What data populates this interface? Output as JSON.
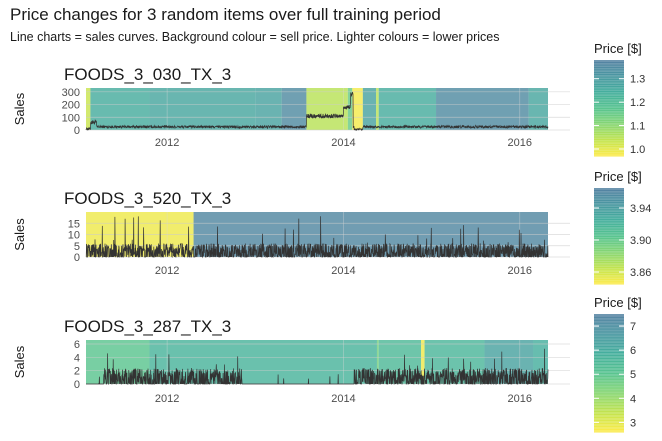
{
  "title": "Price changes for 3 random items over full training period",
  "subtitle": "Line charts = sales curves. Background colour = sell price. Lighter colours = lower prices",
  "chart_data": [
    {
      "type": "line",
      "title": "FOODS_3_030_TX_3",
      "ylabel": "Sales",
      "xlim": [
        2011.08,
        2016.32
      ],
      "ylim": [
        0,
        330
      ],
      "yticks": [
        0,
        100,
        200,
        300
      ],
      "xticks": [
        2012,
        2014,
        2016
      ],
      "legend": {
        "title": "Price [$]",
        "min": 0.97,
        "max": 1.38,
        "ticks": [
          1.0,
          1.1,
          1.2,
          1.3
        ],
        "placement": "right"
      },
      "price_segments": [
        {
          "start": 2011.08,
          "end": 2011.13,
          "price": 1.03
        },
        {
          "start": 2011.13,
          "end": 2011.8,
          "price": 1.25
        },
        {
          "start": 2011.8,
          "end": 2013.0,
          "price": 1.27
        },
        {
          "start": 2013.0,
          "end": 2013.3,
          "price": 1.28
        },
        {
          "start": 2013.3,
          "end": 2013.58,
          "price": 1.35
        },
        {
          "start": 2013.58,
          "end": 2014.05,
          "price": 1.05
        },
        {
          "start": 2014.05,
          "end": 2014.1,
          "price": 1.15
        },
        {
          "start": 2014.1,
          "end": 2014.22,
          "price": 0.98
        },
        {
          "start": 2014.22,
          "end": 2014.37,
          "price": 1.28
        },
        {
          "start": 2014.37,
          "end": 2014.4,
          "price": 1.05
        },
        {
          "start": 2014.4,
          "end": 2015.05,
          "price": 1.25
        },
        {
          "start": 2015.05,
          "end": 2016.1,
          "price": 1.35
        },
        {
          "start": 2016.1,
          "end": 2016.32,
          "price": 1.27
        }
      ],
      "sales": {
        "base": 25,
        "noise": 10,
        "profile": [
          {
            "start": 2011.08,
            "end": 2011.13,
            "level": 10
          },
          {
            "start": 2011.13,
            "end": 2011.2,
            "level": 60
          },
          {
            "start": 2013.58,
            "end": 2014.1,
            "level": 110
          },
          {
            "start": 2014.0,
            "end": 2014.1,
            "level": 180
          },
          {
            "start": 2014.08,
            "end": 2014.11,
            "level": 280
          },
          {
            "start": 2014.12,
            "end": 2014.22,
            "level": 3
          }
        ]
      }
    },
    {
      "type": "line",
      "title": "FOODS_3_520_TX_3",
      "ylabel": "Sales",
      "xlim": [
        2011.08,
        2016.32
      ],
      "ylim": [
        0,
        20
      ],
      "yticks": [
        0,
        5,
        10,
        15
      ],
      "xticks": [
        2012,
        2014,
        2016
      ],
      "legend": {
        "title": "Price [$]",
        "min": 3.845,
        "max": 3.965,
        "ticks": [
          3.86,
          3.9,
          3.94
        ],
        "placement": "right"
      },
      "price_segments": [
        {
          "start": 2011.08,
          "end": 2012.3,
          "price": 3.85
        },
        {
          "start": 2012.3,
          "end": 2016.32,
          "price": 3.96
        }
      ],
      "sales": {
        "base": 2.5,
        "noise": 3.5,
        "peak": 18.5,
        "profile": []
      }
    },
    {
      "type": "line",
      "title": "FOODS_3_287_TX_3",
      "ylabel": "Sales",
      "xlim": [
        2011.08,
        2016.32
      ],
      "ylim": [
        0,
        6.6
      ],
      "yticks": [
        0,
        2,
        4,
        6
      ],
      "xticks": [
        2012,
        2014,
        2016
      ],
      "legend": {
        "title": "Price [$]",
        "min": 2.6,
        "max": 7.5,
        "ticks": [
          3,
          4,
          5,
          6,
          7
        ],
        "placement": "right"
      },
      "price_segments": [
        {
          "start": 2011.08,
          "end": 2011.8,
          "price": 5.0
        },
        {
          "start": 2011.8,
          "end": 2014.38,
          "price": 5.7
        },
        {
          "start": 2014.38,
          "end": 2014.4,
          "price": 4.5
        },
        {
          "start": 2014.4,
          "end": 2014.88,
          "price": 5.5
        },
        {
          "start": 2014.88,
          "end": 2014.92,
          "price": 2.8
        },
        {
          "start": 2014.92,
          "end": 2015.6,
          "price": 5.6
        },
        {
          "start": 2015.6,
          "end": 2016.15,
          "price": 6.3
        },
        {
          "start": 2016.15,
          "end": 2016.32,
          "price": 5.9
        }
      ],
      "sales": {
        "base": 0.8,
        "noise": 1.6,
        "peak": 5.5,
        "profile": [
          {
            "start": 2011.08,
            "end": 2011.28,
            "level": 0
          },
          {
            "start": 2012.85,
            "end": 2014.12,
            "level": 0
          }
        ]
      }
    }
  ]
}
